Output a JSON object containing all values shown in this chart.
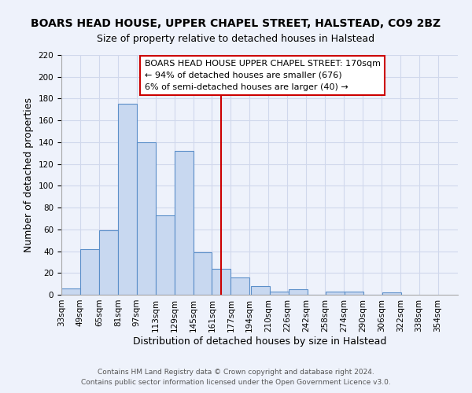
{
  "title": "BOARS HEAD HOUSE, UPPER CHAPEL STREET, HALSTEAD, CO9 2BZ",
  "subtitle": "Size of property relative to detached houses in Halstead",
  "xlabel": "Distribution of detached houses by size in Halstead",
  "ylabel": "Number of detached properties",
  "bar_values": [
    6,
    42,
    59,
    175,
    140,
    73,
    132,
    39,
    24,
    16,
    8,
    3,
    5,
    0,
    3,
    3,
    0,
    2
  ],
  "bin_starts": [
    33,
    49,
    65,
    81,
    97,
    113,
    129,
    145,
    161,
    177,
    194,
    210,
    226,
    242,
    258,
    274,
    290,
    306
  ],
  "bin_width": 16,
  "xlabels": [
    "33sqm",
    "49sqm",
    "65sqm",
    "81sqm",
    "97sqm",
    "113sqm",
    "129sqm",
    "145sqm",
    "161sqm",
    "177sqm",
    "194sqm",
    "210sqm",
    "226sqm",
    "242sqm",
    "258sqm",
    "274sqm",
    "290sqm",
    "306sqm",
    "322sqm",
    "338sqm",
    "354sqm"
  ],
  "ylim": [
    0,
    220
  ],
  "yticks": [
    0,
    20,
    40,
    60,
    80,
    100,
    120,
    140,
    160,
    180,
    200,
    220
  ],
  "bar_fill_color": "#c8d8f0",
  "bar_edge_color": "#5b8fc9",
  "vline_x": 169,
  "vline_color": "#cc0000",
  "annotation_line1": "BOARS HEAD HOUSE UPPER CHAPEL STREET: 170sqm",
  "annotation_line2": "← 94% of detached houses are smaller (676)",
  "annotation_line3": "6% of semi-detached houses are larger (40) →",
  "background_color": "#eef2fb",
  "grid_color": "#d0d8ec",
  "footnote1": "Contains HM Land Registry data © Crown copyright and database right 2024.",
  "footnote2": "Contains public sector information licensed under the Open Government Licence v3.0.",
  "title_fontsize": 10,
  "subtitle_fontsize": 9,
  "axis_label_fontsize": 9,
  "tick_fontsize": 7.5,
  "annotation_fontsize": 8,
  "footnote_fontsize": 6.5
}
